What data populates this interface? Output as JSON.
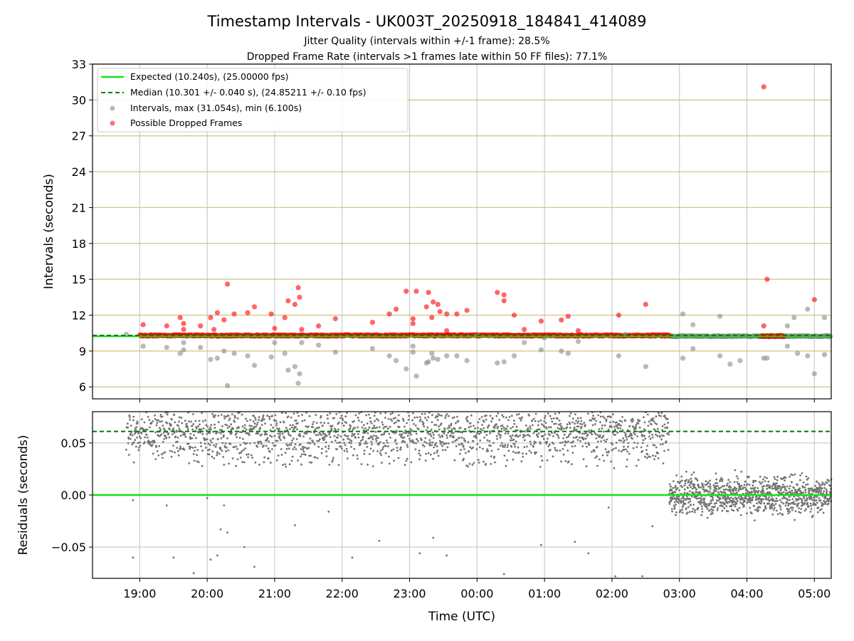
{
  "chart_data": {
    "title": "Timestamp Intervals - UK003T_20250918_184841_414089",
    "subtitle_1": "Jitter Quality (intervals within +/-1 frame): 28.5%",
    "subtitle_2": "Dropped Frame Rate (intervals >1 frames late within 50 FF files): 77.1%",
    "colors": {
      "expected": "#16e016",
      "median": "#008000",
      "intervals": "#808080",
      "dropped": "#ff0000",
      "hgrid": "#c8b060",
      "vgrid": "#cccccc"
    },
    "x_axis": {
      "label": "Time (UTC)",
      "ticks": [
        "19:00",
        "20:00",
        "21:00",
        "22:00",
        "23:00",
        "00:00",
        "01:00",
        "02:00",
        "03:00",
        "04:00",
        "05:00"
      ],
      "range_hours_since_1900": [
        -0.7,
        10.25
      ],
      "data_start": -0.2,
      "data_split": 7.85,
      "data_end": 10.25
    },
    "top_panel": {
      "type": "scatter",
      "ylabel": "Intervals (seconds)",
      "ylim": [
        5,
        33
      ],
      "yticks": [
        "6",
        "9",
        "12",
        "15",
        "18",
        "21",
        "24",
        "27",
        "30",
        "33"
      ],
      "expected_value": 10.24,
      "median_value": 10.301,
      "max_interval": 31.054,
      "min_interval": 6.1,
      "legend": [
        {
          "key": "expected",
          "label": "Expected (10.240s), (25.00000 fps)"
        },
        {
          "key": "median",
          "label": "Median (10.301 +/- 0.040 s), (24.85211 +/- 0.10 fps)"
        },
        {
          "key": "intervals",
          "label": "Intervals, max (31.054s), min (6.100s)"
        },
        {
          "key": "dropped",
          "label": "Possible Dropped Frames"
        }
      ],
      "dropped_outliers": [
        [
          0.05,
          11.2
        ],
        [
          0.4,
          11.1
        ],
        [
          0.6,
          11.8
        ],
        [
          0.65,
          11.3
        ],
        [
          0.65,
          10.8
        ],
        [
          0.9,
          11.1
        ],
        [
          1.05,
          11.8
        ],
        [
          1.1,
          10.8
        ],
        [
          1.15,
          12.2
        ],
        [
          1.25,
          11.6
        ],
        [
          1.3,
          14.6
        ],
        [
          1.4,
          12.1
        ],
        [
          1.6,
          12.2
        ],
        [
          1.7,
          12.7
        ],
        [
          1.95,
          12.1
        ],
        [
          2.0,
          10.9
        ],
        [
          2.15,
          11.8
        ],
        [
          2.2,
          13.2
        ],
        [
          2.3,
          12.9
        ],
        [
          2.35,
          14.3
        ],
        [
          2.37,
          13.5
        ],
        [
          2.4,
          10.8
        ],
        [
          2.65,
          11.1
        ],
        [
          2.9,
          11.7
        ],
        [
          3.45,
          11.4
        ],
        [
          3.7,
          12.1
        ],
        [
          3.8,
          12.5
        ],
        [
          3.95,
          14.0
        ],
        [
          4.05,
          11.7
        ],
        [
          4.05,
          11.3
        ],
        [
          4.1,
          14.0
        ],
        [
          4.25,
          12.7
        ],
        [
          4.28,
          13.9
        ],
        [
          4.33,
          11.8
        ],
        [
          4.35,
          13.1
        ],
        [
          4.42,
          12.9
        ],
        [
          4.45,
          12.3
        ],
        [
          4.55,
          12.1
        ],
        [
          4.55,
          10.7
        ],
        [
          4.7,
          12.1
        ],
        [
          4.85,
          12.4
        ],
        [
          5.3,
          13.9
        ],
        [
          5.4,
          13.7
        ],
        [
          5.4,
          13.2
        ],
        [
          5.55,
          12.0
        ],
        [
          5.7,
          10.8
        ],
        [
          5.95,
          11.5
        ],
        [
          6.25,
          11.6
        ],
        [
          6.35,
          11.9
        ],
        [
          6.5,
          10.7
        ],
        [
          7.1,
          12.0
        ],
        [
          7.5,
          12.9
        ],
        [
          9.25,
          31.1
        ],
        [
          9.25,
          11.1
        ],
        [
          9.3,
          15.0
        ],
        [
          10.0,
          13.3
        ]
      ],
      "interval_outliers": [
        [
          -0.2,
          10.4
        ],
        [
          0.05,
          9.4
        ],
        [
          0.4,
          9.3
        ],
        [
          0.6,
          8.8
        ],
        [
          0.65,
          9.7
        ],
        [
          0.65,
          9.1
        ],
        [
          0.9,
          9.3
        ],
        [
          1.05,
          8.3
        ],
        [
          1.15,
          8.4
        ],
        [
          1.25,
          9.0
        ],
        [
          1.3,
          6.1
        ],
        [
          1.4,
          8.8
        ],
        [
          1.6,
          8.6
        ],
        [
          1.7,
          7.8
        ],
        [
          1.95,
          8.5
        ],
        [
          2.0,
          9.7
        ],
        [
          2.15,
          8.8
        ],
        [
          2.2,
          7.4
        ],
        [
          2.3,
          7.7
        ],
        [
          2.35,
          6.3
        ],
        [
          2.37,
          7.1
        ],
        [
          2.4,
          9.7
        ],
        [
          2.65,
          9.5
        ],
        [
          2.9,
          8.9
        ],
        [
          3.45,
          9.2
        ],
        [
          3.7,
          8.6
        ],
        [
          3.8,
          8.2
        ],
        [
          3.95,
          7.5
        ],
        [
          4.05,
          8.9
        ],
        [
          4.05,
          9.4
        ],
        [
          4.1,
          6.9
        ],
        [
          4.25,
          8.0
        ],
        [
          4.28,
          8.1
        ],
        [
          4.33,
          8.8
        ],
        [
          4.35,
          8.4
        ],
        [
          4.42,
          8.3
        ],
        [
          4.55,
          8.6
        ],
        [
          4.7,
          8.6
        ],
        [
          4.85,
          8.2
        ],
        [
          5.3,
          8.0
        ],
        [
          5.4,
          8.1
        ],
        [
          5.55,
          8.6
        ],
        [
          5.7,
          9.7
        ],
        [
          5.95,
          9.1
        ],
        [
          6.25,
          9.0
        ],
        [
          6.35,
          8.8
        ],
        [
          6.5,
          9.8
        ],
        [
          7.1,
          8.6
        ],
        [
          7.5,
          7.7
        ],
        [
          8.05,
          12.1
        ],
        [
          8.05,
          8.4
        ],
        [
          8.2,
          11.2
        ],
        [
          8.2,
          9.2
        ],
        [
          8.6,
          11.9
        ],
        [
          8.6,
          8.6
        ],
        [
          8.75,
          7.9
        ],
        [
          8.9,
          8.2
        ],
        [
          9.25,
          8.4
        ],
        [
          9.3,
          8.4
        ],
        [
          9.6,
          11.1
        ],
        [
          9.6,
          9.4
        ],
        [
          9.7,
          11.8
        ],
        [
          9.75,
          8.8
        ],
        [
          9.9,
          12.5
        ],
        [
          9.9,
          8.6
        ],
        [
          10.0,
          7.1
        ],
        [
          10.15,
          11.8
        ],
        [
          10.15,
          8.7
        ],
        [
          10.2,
          10.3
        ],
        [
          5.0,
          10.4
        ],
        [
          6.0,
          10.1
        ],
        [
          7.2,
          10.4
        ]
      ]
    },
    "bottom_panel": {
      "type": "scatter",
      "ylabel": "Residuals (seconds)",
      "ylim": [
        -0.08,
        0.08
      ],
      "yticks": [
        "0.05",
        "0.00",
        "−0.05"
      ],
      "expected_residual": 0.0,
      "median_residual": 0.061,
      "segment_1_mean": 0.06,
      "segment_2_mean": 0.0,
      "low_outliers": [
        [
          -0.1,
          -0.06
        ],
        [
          -0.1,
          -0.005
        ],
        [
          0.4,
          -0.01
        ],
        [
          0.5,
          -0.06
        ],
        [
          0.8,
          -0.075
        ],
        [
          1.0,
          -0.003
        ],
        [
          1.05,
          -0.062
        ],
        [
          1.15,
          -0.058
        ],
        [
          1.2,
          -0.033
        ],
        [
          1.25,
          -0.01
        ],
        [
          1.3,
          -0.036
        ],
        [
          1.55,
          -0.05
        ],
        [
          1.7,
          -0.069
        ],
        [
          2.3,
          -0.029
        ],
        [
          2.8,
          -0.016
        ],
        [
          3.15,
          -0.06
        ],
        [
          3.55,
          -0.044
        ],
        [
          4.15,
          -0.056
        ],
        [
          4.35,
          -0.041
        ],
        [
          4.55,
          -0.058
        ],
        [
          5.4,
          -0.076
        ],
        [
          5.95,
          -0.048
        ],
        [
          6.45,
          -0.045
        ],
        [
          6.65,
          -0.056
        ],
        [
          6.95,
          -0.012
        ],
        [
          7.05,
          -0.078
        ],
        [
          7.45,
          -0.078
        ],
        [
          7.6,
          -0.03
        ]
      ]
    }
  }
}
